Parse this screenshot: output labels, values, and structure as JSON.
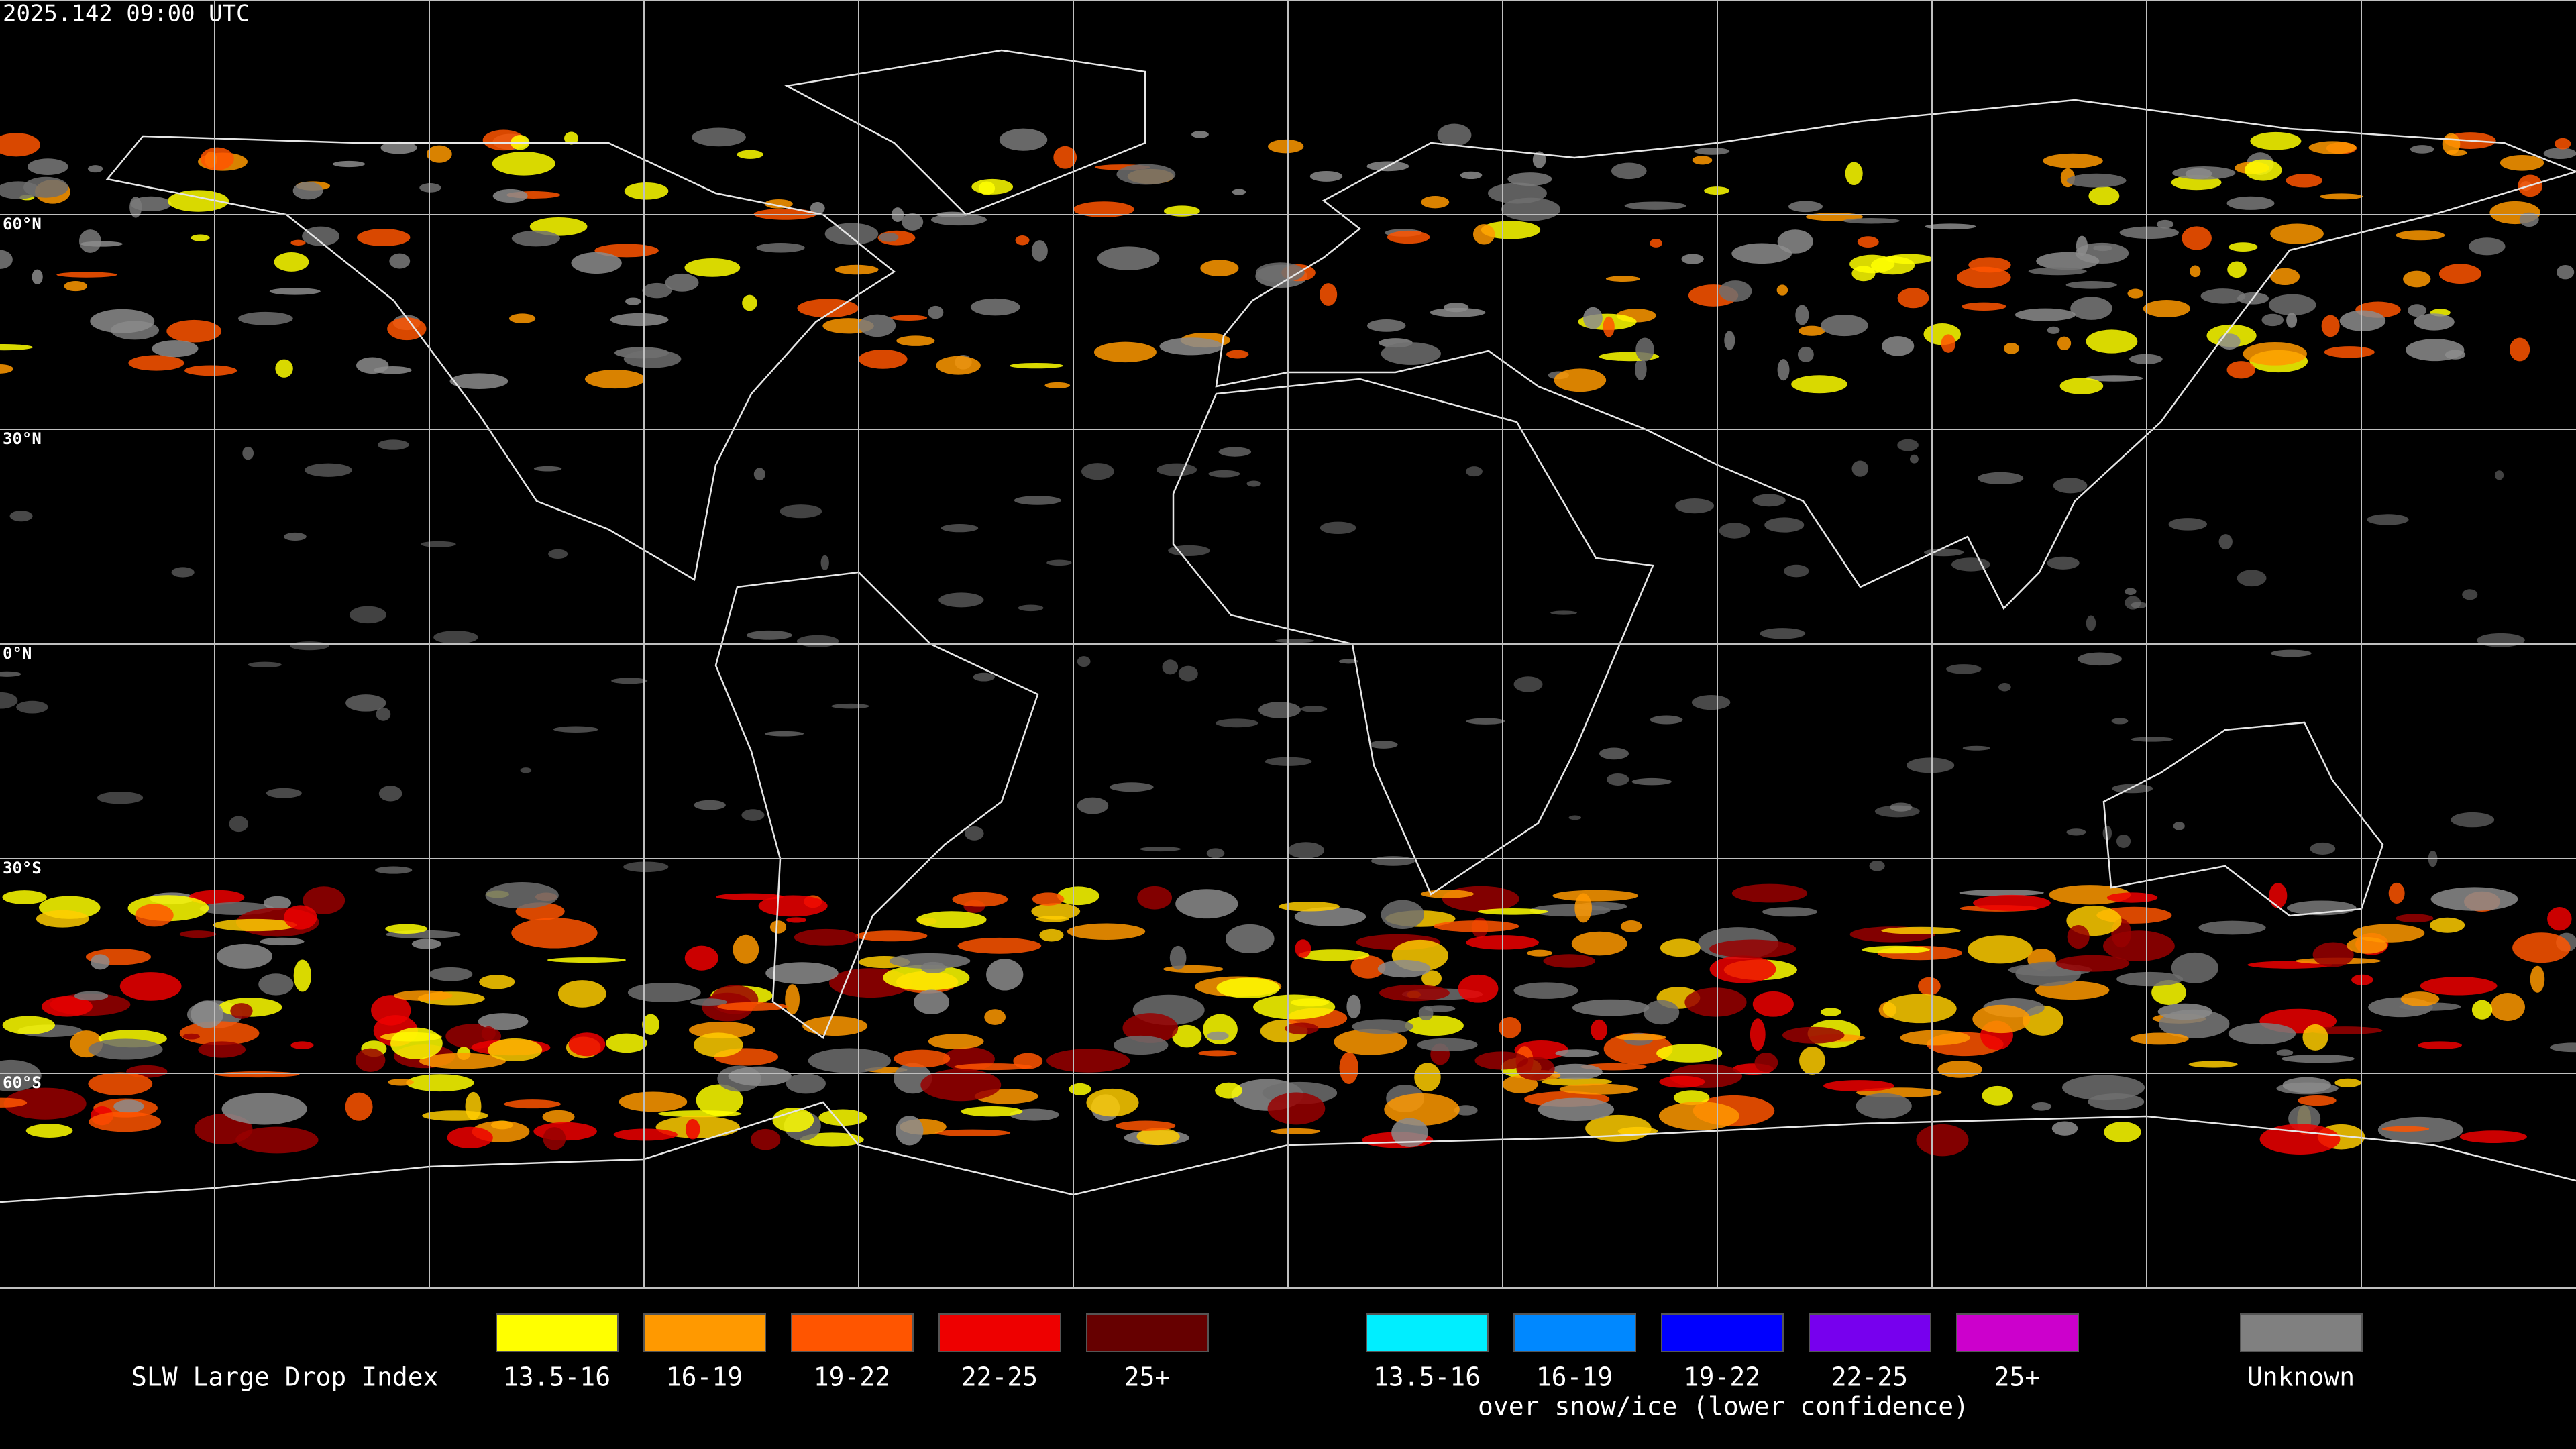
{
  "header": {
    "timestamp": "2025.142 09:00 UTC"
  },
  "map": {
    "lat_labels": [
      "60°N",
      "30°N",
      "0°N",
      "30°S",
      "60°S"
    ]
  },
  "legend": {
    "title": "SLW Large Drop Index",
    "items": [
      {
        "label": "13.5-16",
        "color": "#ffff00"
      },
      {
        "label": "16-19",
        "color": "#ff9900"
      },
      {
        "label": "19-22",
        "color": "#ff5500"
      },
      {
        "label": "22-25",
        "color": "#ee0000"
      },
      {
        "label": "25+",
        "color": "#660000"
      }
    ],
    "snow_items": [
      {
        "label": "13.5-16",
        "color": "#00eeff"
      },
      {
        "label": "16-19",
        "color": "#0088ff"
      },
      {
        "label": "19-22",
        "color": "#0000ff"
      },
      {
        "label": "22-25",
        "color": "#7700ee"
      },
      {
        "label": "25+",
        "color": "#cc00cc"
      }
    ],
    "snow_note": "over snow/ice (lower confidence)",
    "unknown": {
      "label": "Unknown",
      "color": "#808080"
    }
  }
}
